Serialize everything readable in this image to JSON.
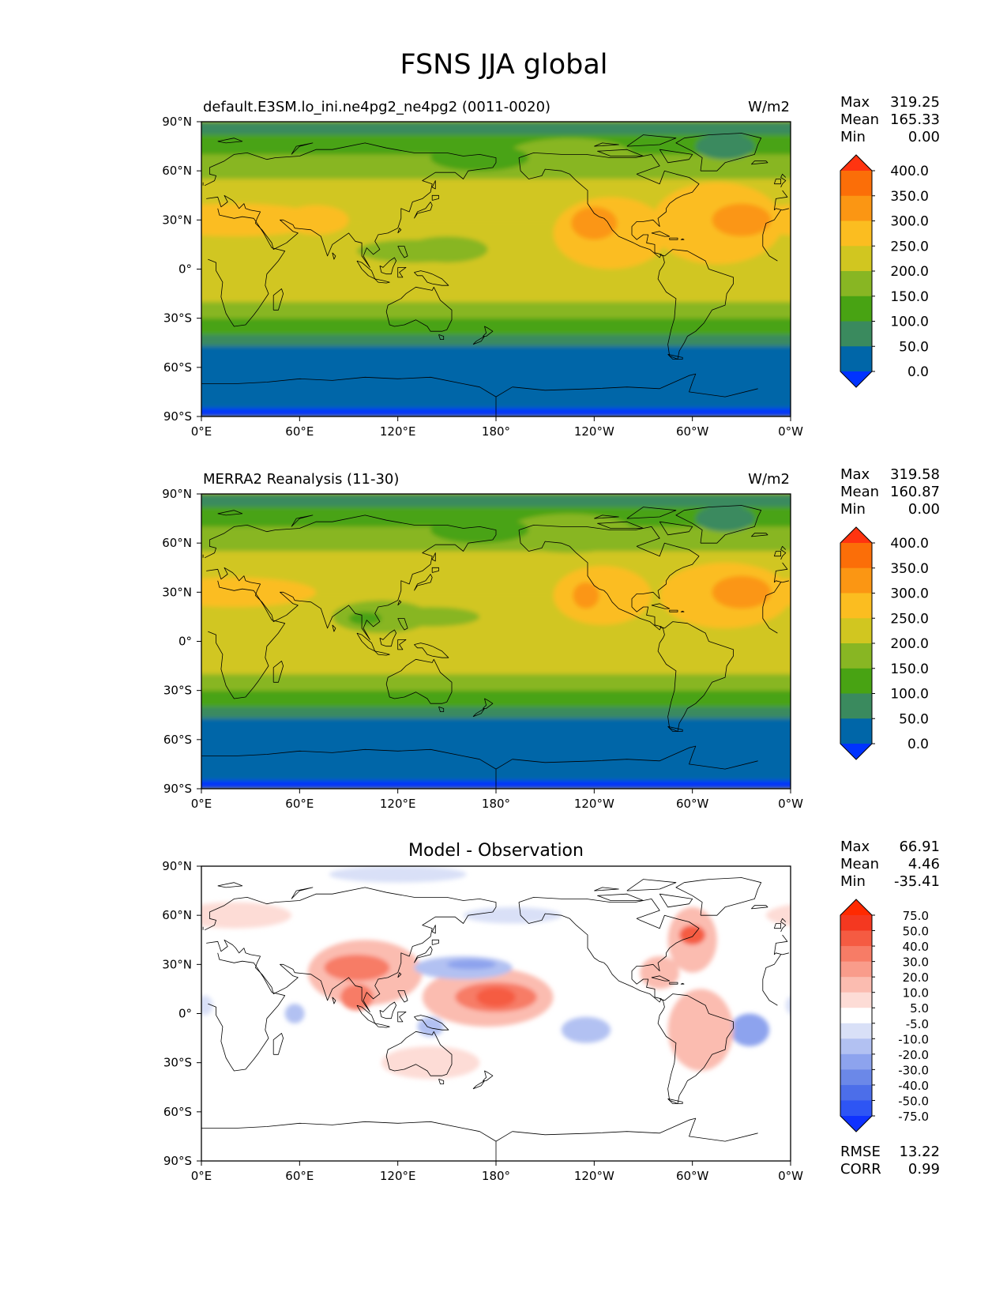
{
  "figure": {
    "title": "FSNS JJA global"
  },
  "chart_data": [
    {
      "type": "heatmap",
      "title": "default.E3SM.lo_ini.ne4pg2_ne4pg2 (0011-0020)",
      "units": "W/m2",
      "stats": {
        "max": "319.25",
        "mean": "165.33",
        "min": "0.00"
      },
      "x_ticks": [
        "0°E",
        "60°E",
        "120°E",
        "180°",
        "120°W",
        "60°W",
        "0°W"
      ],
      "y_ticks": [
        "90°N",
        "60°N",
        "30°N",
        "0°",
        "30°S",
        "60°S",
        "90°S"
      ],
      "xlim": [
        0,
        360
      ],
      "ylim": [
        -90,
        90
      ],
      "colorbar": {
        "levels": [
          0,
          50,
          100,
          150,
          200,
          250,
          300,
          350,
          400
        ],
        "tick_labels": [
          "0.0",
          "50.0",
          "100.0",
          "150.0",
          "200.0",
          "250.0",
          "300.0",
          "350.0",
          "400.0"
        ],
        "colors": [
          "#0033ff",
          "#0066a8",
          "#3a8a5e",
          "#48a313",
          "#88b623",
          "#d1c620",
          "#fbbd20",
          "#fb9613",
          "#fb6e08",
          "#ff3410"
        ]
      },
      "zonal_bands": [
        {
          "lat": [
            -90,
            -85
          ],
          "value": -10
        },
        {
          "lat": [
            -85,
            -47
          ],
          "value": 30
        },
        {
          "lat": [
            -47,
            -40
          ],
          "value": 80
        },
        {
          "lat": [
            -40,
            -30
          ],
          "value": 130
        },
        {
          "lat": [
            -30,
            -20
          ],
          "value": 170
        },
        {
          "lat": [
            -20,
            28
          ],
          "value": 230
        },
        {
          "lat": [
            28,
            55
          ],
          "value": 220
        },
        {
          "lat": [
            55,
            70
          ],
          "value": 170
        },
        {
          "lat": [
            70,
            82
          ],
          "value": 140
        },
        {
          "lat": [
            82,
            90
          ],
          "value": 90
        }
      ],
      "features": [
        {
          "lon": 115,
          "lat": 35,
          "rx": 20,
          "ry": 12,
          "value": 240
        },
        {
          "lon": 20,
          "lat": 30,
          "rx": 55,
          "ry": 10,
          "value": 260
        },
        {
          "lon": 70,
          "lat": 30,
          "rx": 20,
          "ry": 9,
          "value": 255
        },
        {
          "lon": 130,
          "lat": 11,
          "rx": 35,
          "ry": 7,
          "value": 160
        },
        {
          "lon": 150,
          "lat": 12,
          "rx": 25,
          "ry": 8,
          "value": 190
        },
        {
          "lon": 250,
          "lat": 22,
          "rx": 35,
          "ry": 22,
          "value": 270
        },
        {
          "lon": 240,
          "lat": 28,
          "rx": 14,
          "ry": 10,
          "value": 315
        },
        {
          "lon": 315,
          "lat": 28,
          "rx": 40,
          "ry": 25,
          "value": 270
        },
        {
          "lon": 330,
          "lat": 30,
          "rx": 18,
          "ry": 10,
          "value": 310
        },
        {
          "lon": 225,
          "lat": 68,
          "rx": 40,
          "ry": 12,
          "value": 150
        },
        {
          "lon": 170,
          "lat": 68,
          "rx": 30,
          "ry": 8,
          "value": 120
        },
        {
          "lon": 320,
          "lat": 75,
          "rx": 18,
          "ry": 8,
          "value": 90
        }
      ]
    },
    {
      "type": "heatmap",
      "title": "MERRA2 Reanalysis (11-30)",
      "units": "W/m2",
      "stats": {
        "max": "319.58",
        "mean": "160.87",
        "min": "0.00"
      },
      "x_ticks": [
        "0°E",
        "60°E",
        "120°E",
        "180°",
        "120°W",
        "60°W",
        "0°W"
      ],
      "y_ticks": [
        "90°N",
        "60°N",
        "30°N",
        "0°",
        "30°S",
        "60°S",
        "90°S"
      ],
      "xlim": [
        0,
        360
      ],
      "ylim": [
        -90,
        90
      ],
      "colorbar": {
        "levels": [
          0,
          50,
          100,
          150,
          200,
          250,
          300,
          350,
          400
        ],
        "tick_labels": [
          "0.0",
          "50.0",
          "100.0",
          "150.0",
          "200.0",
          "250.0",
          "300.0",
          "350.0",
          "400.0"
        ],
        "colors": [
          "#0033ff",
          "#0066a8",
          "#3a8a5e",
          "#48a313",
          "#88b623",
          "#d1c620",
          "#fbbd20",
          "#fb9613",
          "#fb6e08",
          "#ff3410"
        ]
      },
      "zonal_bands": [
        {
          "lat": [
            -90,
            -85
          ],
          "value": -10
        },
        {
          "lat": [
            -85,
            -47
          ],
          "value": 30
        },
        {
          "lat": [
            -47,
            -40
          ],
          "value": 80
        },
        {
          "lat": [
            -40,
            -30
          ],
          "value": 130
        },
        {
          "lat": [
            -30,
            -20
          ],
          "value": 170
        },
        {
          "lat": [
            -20,
            28
          ],
          "value": 225
        },
        {
          "lat": [
            28,
            55
          ],
          "value": 215
        },
        {
          "lat": [
            55,
            70
          ],
          "value": 170
        },
        {
          "lat": [
            70,
            82
          ],
          "value": 140
        },
        {
          "lat": [
            82,
            90
          ],
          "value": 90
        }
      ],
      "features": [
        {
          "lon": 20,
          "lat": 30,
          "rx": 50,
          "ry": 9,
          "value": 255
        },
        {
          "lon": 110,
          "lat": 15,
          "rx": 30,
          "ry": 10,
          "value": 170
        },
        {
          "lon": 100,
          "lat": 14,
          "rx": 10,
          "ry": 4,
          "value": 120
        },
        {
          "lon": 140,
          "lat": 15,
          "rx": 30,
          "ry": 6,
          "value": 180
        },
        {
          "lon": 245,
          "lat": 28,
          "rx": 30,
          "ry": 18,
          "value": 270
        },
        {
          "lon": 235,
          "lat": 28,
          "rx": 8,
          "ry": 8,
          "value": 310
        },
        {
          "lon": 320,
          "lat": 28,
          "rx": 40,
          "ry": 20,
          "value": 270
        },
        {
          "lon": 330,
          "lat": 30,
          "rx": 18,
          "ry": 10,
          "value": 305
        },
        {
          "lon": 225,
          "lat": 66,
          "rx": 40,
          "ry": 12,
          "value": 150
        },
        {
          "lon": 170,
          "lat": 68,
          "rx": 30,
          "ry": 8,
          "value": 120
        },
        {
          "lon": 320,
          "lat": 75,
          "rx": 18,
          "ry": 8,
          "value": 90
        }
      ]
    },
    {
      "type": "heatmap",
      "title": "Model - Observation",
      "units": "",
      "stats": {
        "max": "66.91",
        "mean": "4.46",
        "min": "-35.41"
      },
      "metrics": {
        "rmse": "13.22",
        "corr": "0.99"
      },
      "x_ticks": [
        "0°E",
        "60°E",
        "120°E",
        "180°",
        "120°W",
        "60°W",
        "0°W"
      ],
      "y_ticks": [
        "90°N",
        "60°N",
        "30°N",
        "0°",
        "30°S",
        "60°S",
        "90°S"
      ],
      "xlim": [
        0,
        360
      ],
      "ylim": [
        -90,
        90
      ],
      "colorbar": {
        "levels": [
          -75,
          -50,
          -40,
          -30,
          -20,
          -10,
          -5,
          5,
          10,
          20,
          30,
          40,
          50,
          75
        ],
        "tick_labels": [
          "-75.0",
          "-50.0",
          "-40.0",
          "-30.0",
          "-20.0",
          "-10.0",
          "-5.0",
          "5.0",
          "10.0",
          "20.0",
          "30.0",
          "40.0",
          "50.0",
          "75.0"
        ],
        "colors": [
          "#0f32ff",
          "#2e55f4",
          "#4c6ee9",
          "#6b88e8",
          "#8da3ee",
          "#b2c1f2",
          "#d9e0f7",
          "#ffffff",
          "#fddcd6",
          "#fbbcb0",
          "#f99c8b",
          "#f77c66",
          "#f55b42",
          "#f43820",
          "#ff2a00"
        ]
      },
      "zonal_bands": [],
      "features": [
        {
          "lon": 120,
          "lat": 85,
          "rx": 42,
          "ry": 5,
          "value": -7
        },
        {
          "lon": 100,
          "lat": 25,
          "rx": 35,
          "ry": 20,
          "value": 15
        },
        {
          "lon": 95,
          "lat": 28,
          "rx": 20,
          "ry": 8,
          "value": 30
        },
        {
          "lon": 95,
          "lat": 10,
          "rx": 10,
          "ry": 8,
          "value": 35
        },
        {
          "lon": 175,
          "lat": 10,
          "rx": 40,
          "ry": 18,
          "value": 15
        },
        {
          "lon": 180,
          "lat": 10,
          "rx": 25,
          "ry": 9,
          "value": 35
        },
        {
          "lon": 180,
          "lat": 10,
          "rx": 12,
          "ry": 6,
          "value": 45
        },
        {
          "lon": 160,
          "lat": 28,
          "rx": 30,
          "ry": 7,
          "value": -15
        },
        {
          "lon": 165,
          "lat": 30,
          "rx": 15,
          "ry": 3,
          "value": -25
        },
        {
          "lon": 140,
          "lat": -8,
          "rx": 8,
          "ry": 6,
          "value": -15
        },
        {
          "lon": 235,
          "lat": -10,
          "rx": 15,
          "ry": 8,
          "value": -15
        },
        {
          "lon": 335,
          "lat": -10,
          "rx": 12,
          "ry": 10,
          "value": -22
        },
        {
          "lon": 2,
          "lat": 5,
          "rx": 5,
          "ry": 6,
          "value": -10
        },
        {
          "lon": 57,
          "lat": 0,
          "rx": 6,
          "ry": 6,
          "value": -12
        },
        {
          "lon": 300,
          "lat": 45,
          "rx": 15,
          "ry": 20,
          "value": 12
        },
        {
          "lon": 300,
          "lat": 48,
          "rx": 8,
          "ry": 6,
          "value": 40
        },
        {
          "lon": 305,
          "lat": -10,
          "rx": 20,
          "ry": 25,
          "value": 10
        },
        {
          "lon": 280,
          "lat": 25,
          "rx": 12,
          "ry": 10,
          "value": 18
        },
        {
          "lon": 20,
          "lat": 60,
          "rx": 35,
          "ry": 8,
          "value": 6
        },
        {
          "lon": 140,
          "lat": -30,
          "rx": 30,
          "ry": 10,
          "value": 6
        },
        {
          "lon": 190,
          "lat": 60,
          "rx": 30,
          "ry": 5,
          "value": -6
        }
      ]
    }
  ]
}
